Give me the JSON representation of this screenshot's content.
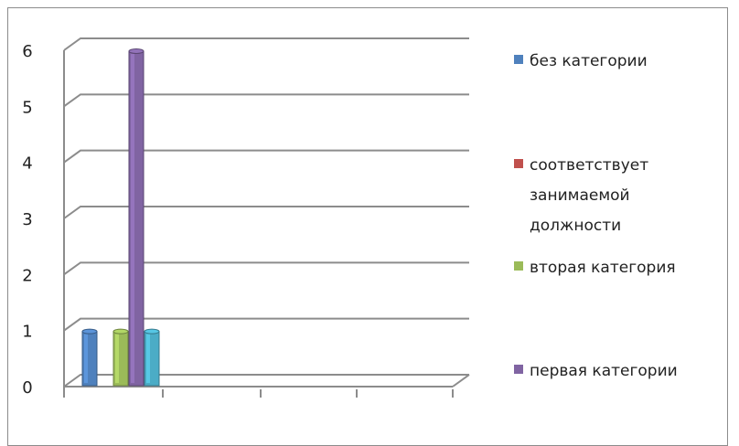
{
  "top_text": "",
  "chart_data": {
    "type": "bar",
    "title": "",
    "xlabel": "",
    "ylabel": "",
    "ylim": [
      0,
      6
    ],
    "yticks": [
      "0",
      "1",
      "2",
      "3",
      "4",
      "5",
      "6"
    ],
    "grid": true,
    "legend_position": "right",
    "categories": [
      ""
    ],
    "series": [
      {
        "name": "без категории",
        "values": [
          1
        ],
        "color": "#4f81bd"
      },
      {
        "name": "соответствует занимаемой должности",
        "values": [
          0
        ],
        "color": "#c0504d"
      },
      {
        "name": "вторая категория",
        "values": [
          1
        ],
        "color": "#9bbb59"
      },
      {
        "name": "первая категории",
        "values": [
          6
        ],
        "color": "#8064a2"
      },
      {
        "name": "",
        "values": [
          1
        ],
        "color": "#4bacc6"
      }
    ]
  }
}
